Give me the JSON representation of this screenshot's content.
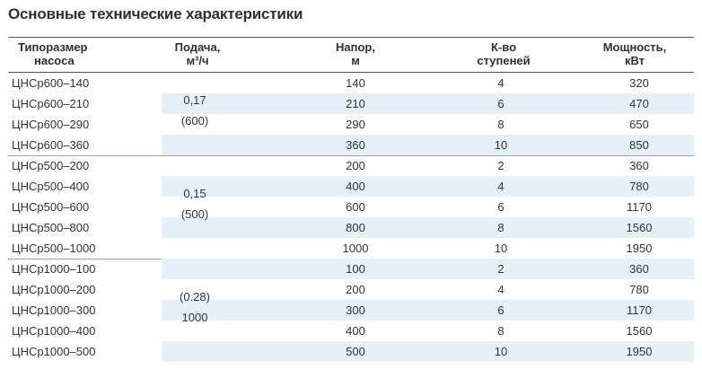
{
  "title": "Основные технические характеристики",
  "headers": {
    "model": [
      "Типоразмер",
      "насоса"
    ],
    "flow": [
      "Подача,",
      "м³/ч"
    ],
    "head": [
      "Напор,",
      "м"
    ],
    "stages": [
      "К-во",
      "ступеней"
    ],
    "power": [
      "Мощность,",
      "кВт"
    ]
  },
  "groups": [
    {
      "flow": [
        "0,17",
        "(600)"
      ],
      "rows": [
        {
          "model": "ЦНСр600–140",
          "head": "140",
          "stages": "4",
          "power": "320"
        },
        {
          "model": "ЦНСр600–210",
          "head": "210",
          "stages": "6",
          "power": "470"
        },
        {
          "model": "ЦНСр600–290",
          "head": "290",
          "stages": "8",
          "power": "650"
        },
        {
          "model": "ЦНСр600–360",
          "head": "360",
          "stages": "10",
          "power": "850"
        }
      ]
    },
    {
      "flow": [
        "0,15",
        "(500)"
      ],
      "rows": [
        {
          "model": "ЦНСр500–200",
          "head": "200",
          "stages": "2",
          "power": "360"
        },
        {
          "model": "ЦНСр500–400",
          "head": "400",
          "stages": "4",
          "power": "780"
        },
        {
          "model": "ЦНСр500–600",
          "head": "600",
          "stages": "6",
          "power": "1170"
        },
        {
          "model": "ЦНСр500–800",
          "head": "800",
          "stages": "8",
          "power": "1560"
        },
        {
          "model": "ЦНСр500–1000",
          "head": "1000",
          "stages": "10",
          "power": "1950"
        }
      ]
    },
    {
      "flow": [
        "(0.28)",
        "1000"
      ],
      "rows": [
        {
          "model": "ЦНСр1000–100",
          "head": "100",
          "stages": "2",
          "power": "360"
        },
        {
          "model": "ЦНСр1000–200",
          "head": "200",
          "stages": "4",
          "power": "780"
        },
        {
          "model": "ЦНСр1000–300",
          "head": "300",
          "stages": "6",
          "power": "1170"
        },
        {
          "model": "ЦНСр1000–400",
          "head": "400",
          "stages": "8",
          "power": "1560"
        },
        {
          "model": "ЦНСр1000–500",
          "head": "500",
          "stages": "10",
          "power": "1950"
        }
      ]
    }
  ]
}
